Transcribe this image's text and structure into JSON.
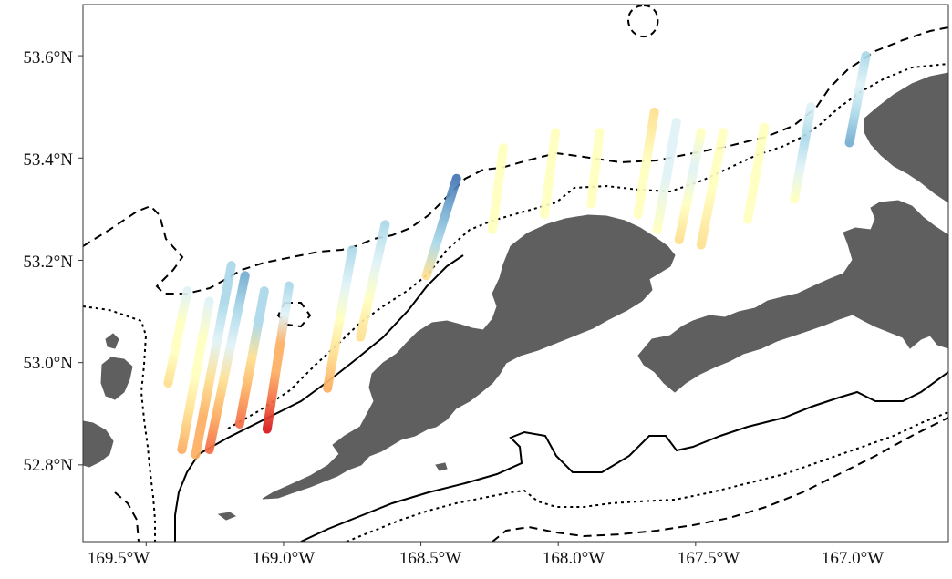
{
  "map": {
    "x_tick_labels": [
      "169.5°W",
      "169.0°W",
      "168.5°W",
      "168.0°W",
      "167.5°W",
      "167.0°W"
    ],
    "y_tick_labels": [
      "53.6°N",
      "53.4°N",
      "53.2°N",
      "53.0°N",
      "52.8°N"
    ],
    "x_tick_values": [
      -169.5,
      -169.0,
      -168.5,
      -168.0,
      -167.5,
      -167.0
    ],
    "y_tick_values": [
      53.6,
      53.4,
      53.2,
      53.0,
      52.8
    ],
    "lon_range": [
      -169.73,
      -166.58
    ],
    "lat_range": [
      52.65,
      53.7
    ],
    "land_color": "#5f5f5f",
    "contour_color": "#000000",
    "contour_styles": [
      "solid",
      "dotted",
      "dashed"
    ],
    "color_scale": [
      "#d7191c",
      "#f46d43",
      "#fdae61",
      "#fee090",
      "#ffffbf",
      "#e0f3f8",
      "#abd9e9",
      "#74add1",
      "#4575b4"
    ],
    "transects": [
      {
        "start": [
          -169.42,
          52.96
        ],
        "end": [
          -169.35,
          53.14
        ],
        "colors": [
          "#fee090",
          "#ffffbf",
          "#ffffbf",
          "#e0f3f8"
        ]
      },
      {
        "start": [
          -169.37,
          52.83
        ],
        "end": [
          -169.27,
          53.12
        ],
        "colors": [
          "#fdae61",
          "#fee090",
          "#ffffbf",
          "#ffffbf",
          "#e0f3f8"
        ]
      },
      {
        "start": [
          -169.32,
          52.82
        ],
        "end": [
          -169.19,
          53.19
        ],
        "colors": [
          "#fdae61",
          "#fdae61",
          "#fee090",
          "#e0f3f8",
          "#abd9e9",
          "#abd9e9"
        ]
      },
      {
        "start": [
          -169.27,
          52.83
        ],
        "end": [
          -169.14,
          53.17
        ],
        "colors": [
          "#f46d43",
          "#fdae61",
          "#fee090",
          "#e0f3f8",
          "#abd9e9",
          "#74add1"
        ]
      },
      {
        "start": [
          -169.16,
          52.88
        ],
        "end": [
          -169.07,
          53.14
        ],
        "colors": [
          "#f46d43",
          "#fdae61",
          "#fee090",
          "#abd9e9",
          "#abd9e9"
        ]
      },
      {
        "start": [
          -169.06,
          52.87
        ],
        "end": [
          -168.98,
          53.15
        ],
        "colors": [
          "#d7191c",
          "#f46d43",
          "#fdae61",
          "#fdae61",
          "#e0f3f8",
          "#abd9e9"
        ]
      },
      {
        "start": [
          -168.84,
          52.95
        ],
        "end": [
          -168.75,
          53.22
        ],
        "colors": [
          "#fdae61",
          "#fee090",
          "#ffffbf",
          "#e0f3f8",
          "#abd9e9"
        ]
      },
      {
        "start": [
          -168.72,
          53.05
        ],
        "end": [
          -168.63,
          53.27
        ],
        "colors": [
          "#fee090",
          "#ffffbf",
          "#e0f3f8",
          "#abd9e9"
        ]
      },
      {
        "start": [
          -168.48,
          53.17
        ],
        "end": [
          -168.37,
          53.36
        ],
        "colors": [
          "#fee090",
          "#abd9e9",
          "#74add1",
          "#4575b4"
        ]
      },
      {
        "start": [
          -168.24,
          53.26
        ],
        "end": [
          -168.2,
          53.42
        ],
        "colors": [
          "#ffffbf",
          "#ffffbf",
          "#ffffbf"
        ]
      },
      {
        "start": [
          -168.05,
          53.29
        ],
        "end": [
          -168.01,
          53.45
        ],
        "colors": [
          "#ffffbf",
          "#ffffbf",
          "#ffffbf"
        ]
      },
      {
        "start": [
          -167.88,
          53.31
        ],
        "end": [
          -167.85,
          53.45
        ],
        "colors": [
          "#ffffbf",
          "#ffffbf"
        ]
      },
      {
        "start": [
          -167.71,
          53.29
        ],
        "end": [
          -167.65,
          53.49
        ],
        "colors": [
          "#ffffbf",
          "#ffffbf",
          "#fee090"
        ]
      },
      {
        "start": [
          -167.64,
          53.26
        ],
        "end": [
          -167.57,
          53.47
        ],
        "colors": [
          "#ffffbf",
          "#e0f3f8",
          "#e0f3f8"
        ]
      },
      {
        "start": [
          -167.56,
          53.24
        ],
        "end": [
          -167.48,
          53.45
        ],
        "colors": [
          "#fee090",
          "#ffffbf",
          "#e0f3f8",
          "#ffffbf"
        ]
      },
      {
        "start": [
          -167.48,
          53.23
        ],
        "end": [
          -167.4,
          53.45
        ],
        "colors": [
          "#fee090",
          "#ffffbf",
          "#ffffbf"
        ]
      },
      {
        "start": [
          -167.31,
          53.28
        ],
        "end": [
          -167.25,
          53.46
        ],
        "colors": [
          "#ffffbf",
          "#ffffbf"
        ]
      },
      {
        "start": [
          -167.14,
          53.32
        ],
        "end": [
          -167.08,
          53.5
        ],
        "colors": [
          "#ffffbf",
          "#e0f3f8",
          "#abd9e9",
          "#e0f3f8"
        ]
      },
      {
        "start": [
          -166.94,
          53.43
        ],
        "end": [
          -166.88,
          53.6
        ],
        "colors": [
          "#74add1",
          "#abd9e9",
          "#e0f3f8",
          "#abd9e9"
        ]
      }
    ]
  }
}
